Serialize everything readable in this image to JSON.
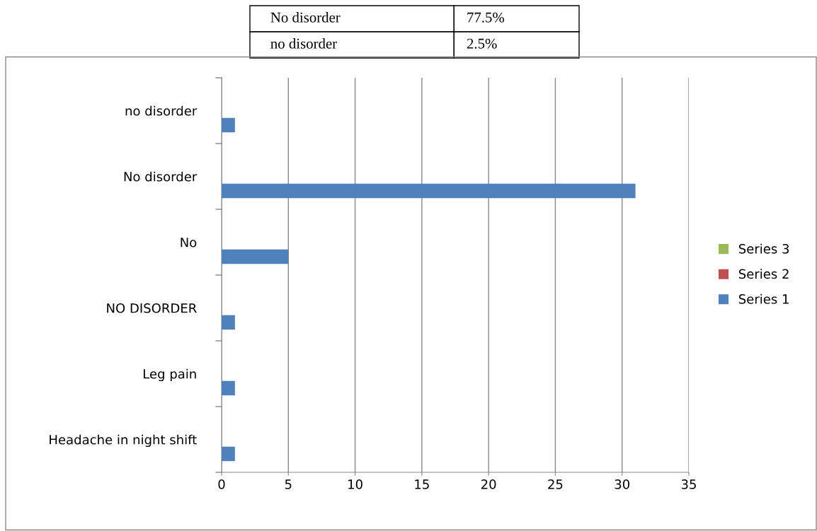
{
  "chart_data": {
    "type": "bar",
    "orientation": "horizontal",
    "categories": [
      "no disorder",
      "No disorder",
      "No",
      "NO DISORDER",
      "Leg pain",
      "Headache in night shift"
    ],
    "series": [
      {
        "name": "Series 1",
        "color": "#4f81bd",
        "values": [
          1,
          31,
          5,
          1,
          1,
          1
        ]
      },
      {
        "name": "Series 2",
        "color": "#c0504d",
        "values": [
          null,
          null,
          null,
          null,
          null,
          null
        ]
      },
      {
        "name": "Series 3",
        "color": "#9bbb59",
        "values": [
          null,
          null,
          null,
          null,
          null,
          null
        ]
      }
    ],
    "xlim": [
      0,
      35
    ],
    "xticks": [
      0,
      5,
      10,
      15,
      20,
      25,
      30,
      35
    ],
    "grid": "x",
    "legend": "right",
    "annotations": [
      "No disorder",
      "77.5%",
      "no disorder",
      "2.5%"
    ]
  }
}
